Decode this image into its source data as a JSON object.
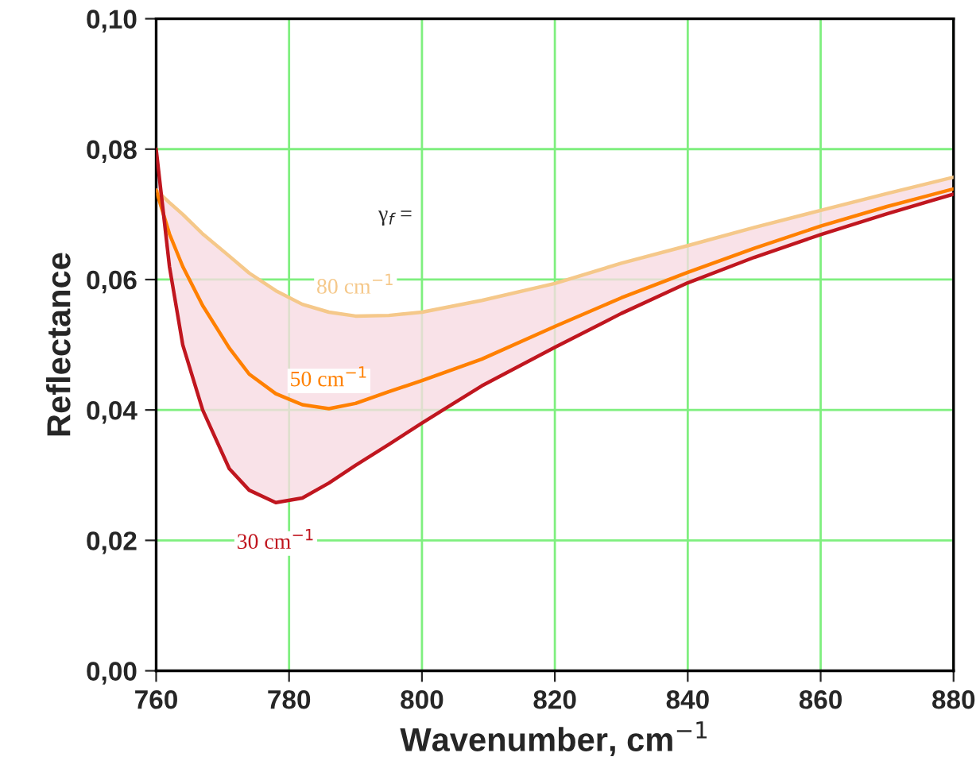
{
  "chart_data": {
    "type": "line",
    "xlabel": "Wavenumber, cm$^{−1}$",
    "ylabel": "Reflectance",
    "annotations": [
      "γ$_{f}$ ="
    ],
    "x": [
      760,
      762,
      764,
      767,
      771,
      774,
      778,
      782,
      786,
      790,
      795,
      800,
      809,
      820,
      830,
      840,
      850,
      860,
      870,
      880
    ],
    "series": [
      {
        "name": "80 cm$^{−1}$",
        "color": "#f5c88a",
        "values": [
          0.0737,
          0.0718,
          0.07,
          0.067,
          0.0636,
          0.061,
          0.0583,
          0.0562,
          0.055,
          0.0544,
          0.0545,
          0.055,
          0.0568,
          0.0594,
          0.0625,
          0.0652,
          0.068,
          0.0706,
          0.0732,
          0.0757
        ]
      },
      {
        "name": "50 cm$^{−1}$",
        "color": "#ff8000",
        "values": [
          0.0737,
          0.067,
          0.062,
          0.056,
          0.0495,
          0.0455,
          0.0425,
          0.0408,
          0.0402,
          0.041,
          0.0428,
          0.0445,
          0.0478,
          0.0528,
          0.0572,
          0.0611,
          0.0648,
          0.0682,
          0.0712,
          0.0739
        ],
        "lower": [
          0.08,
          0.062,
          0.05,
          0.04,
          0.031,
          0.0277,
          0.0258,
          0.0265,
          0.0288,
          0.0315,
          0.0347,
          0.038,
          0.0437,
          0.0496,
          0.0548,
          0.0595,
          0.0634,
          0.0669,
          0.0701,
          0.0731
        ],
        "upper": [
          0.0737,
          0.0718,
          0.07,
          0.067,
          0.0636,
          0.061,
          0.0583,
          0.0562,
          0.055,
          0.0544,
          0.0545,
          0.055,
          0.0568,
          0.0594,
          0.0625,
          0.0652,
          0.068,
          0.0706,
          0.0732,
          0.0757
        ]
      },
      {
        "name": "30 cm$^{−1}$",
        "color": "#c0161f",
        "values": [
          0.08,
          0.062,
          0.05,
          0.04,
          0.031,
          0.0277,
          0.0258,
          0.0265,
          0.0288,
          0.0315,
          0.0347,
          0.038,
          0.0437,
          0.0496,
          0.0548,
          0.0595,
          0.0634,
          0.0669,
          0.0701,
          0.0731
        ]
      }
    ],
    "xlim": [
      760,
      880
    ],
    "xticks": [
      760,
      780,
      800,
      820,
      840,
      860,
      880
    ],
    "ylim": [
      0,
      0.1
    ],
    "yticks": [
      {
        "value": 0,
        "label": "0,00"
      },
      {
        "value": 0.02,
        "label": "0,02"
      },
      {
        "value": 0.04,
        "label": "0,04"
      },
      {
        "value": 0.06,
        "label": "0,06"
      },
      {
        "value": 0.08,
        "label": "0,08"
      },
      {
        "value": 0.1,
        "label": "0,10"
      }
    ],
    "grid": true,
    "legend": false,
    "marker": "none",
    "line_style": "solid"
  }
}
